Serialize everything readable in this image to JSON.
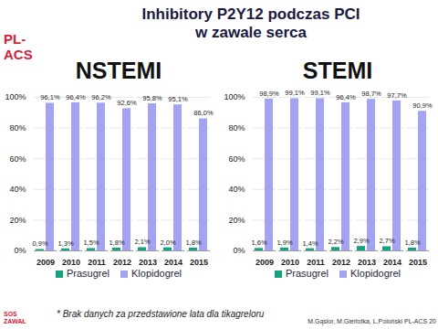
{
  "header": {
    "title": [
      "Inhibitory P2Y12 podczas PCI",
      "w zawale serca"
    ],
    "logo": [
      "PL-",
      "ACS"
    ]
  },
  "chart_data": [
    {
      "type": "bar",
      "title": "NSTEMI",
      "categories": [
        "2009",
        "2010",
        "2011",
        "2012",
        "2013",
        "2014",
        "2015"
      ],
      "series": [
        {
          "name": "Prasugrel",
          "color": "#12a37f",
          "values": [
            0.9,
            1.3,
            1.5,
            1.8,
            2.1,
            2.0,
            1.8
          ],
          "value_labels": [
            "0,9%",
            "1,3%",
            "1,5%",
            "1,8%",
            "2,1%",
            "2,0%",
            "1,8%"
          ]
        },
        {
          "name": "Klopidogrel",
          "color": "#a3a3f0",
          "values": [
            96.1,
            96.4,
            96.2,
            92.6,
            95.8,
            95.1,
            86.0
          ],
          "value_labels": [
            "96,1%",
            "96,4%",
            "96,2%",
            "92,6%",
            "95,8%",
            "95,1%",
            "86,0%"
          ]
        }
      ],
      "ylim": [
        0,
        100
      ],
      "yticks": [
        {
          "value": 0,
          "label": "0%"
        },
        {
          "value": 20,
          "label": "20%"
        },
        {
          "value": 40,
          "label": "40%"
        },
        {
          "value": 60,
          "label": "60%"
        },
        {
          "value": 80,
          "label": "80%"
        },
        {
          "value": 100,
          "label": "100%"
        }
      ],
      "grid": true,
      "data_labels": true,
      "legend": "bottom"
    },
    {
      "type": "bar",
      "title": "STEMI",
      "categories": [
        "2009",
        "2010",
        "2011",
        "2012",
        "2013",
        "2014",
        "2015"
      ],
      "series": [
        {
          "name": "Prasugrel",
          "color": "#12a37f",
          "values": [
            1.6,
            1.9,
            1.4,
            2.2,
            2.9,
            2.7,
            1.8
          ],
          "value_labels": [
            "1,6%",
            "1,9%",
            "1,4%",
            "2,2%",
            "2,9%",
            "2,7%",
            "1,8%"
          ]
        },
        {
          "name": "Klopidogrel",
          "color": "#a3a3f0",
          "values": [
            98.9,
            99.1,
            99.1,
            96.4,
            98.7,
            97.7,
            90.9
          ],
          "value_labels": [
            "98,9%",
            "99,1%",
            "99,1%",
            "96,4%",
            "98,7%",
            "97,7%",
            "90,9%"
          ]
        }
      ],
      "ylim": [
        0,
        100
      ],
      "yticks": [
        {
          "value": 0,
          "label": "0%"
        },
        {
          "value": 20,
          "label": "20%"
        },
        {
          "value": 40,
          "label": "40%"
        },
        {
          "value": 60,
          "label": "60%"
        },
        {
          "value": 80,
          "label": "80%"
        },
        {
          "value": 100,
          "label": "100%"
        }
      ],
      "grid": true,
      "data_labels": true,
      "legend": "bottom"
    }
  ],
  "footer": {
    "note": "* Brak danych za przedstawione lata dla tikagreloru",
    "source": "M.Gąsior, M.Gierlotka, L.Poloński PL-ACS 20",
    "logo": [
      "SOS",
      "ZAWAŁ"
    ]
  }
}
